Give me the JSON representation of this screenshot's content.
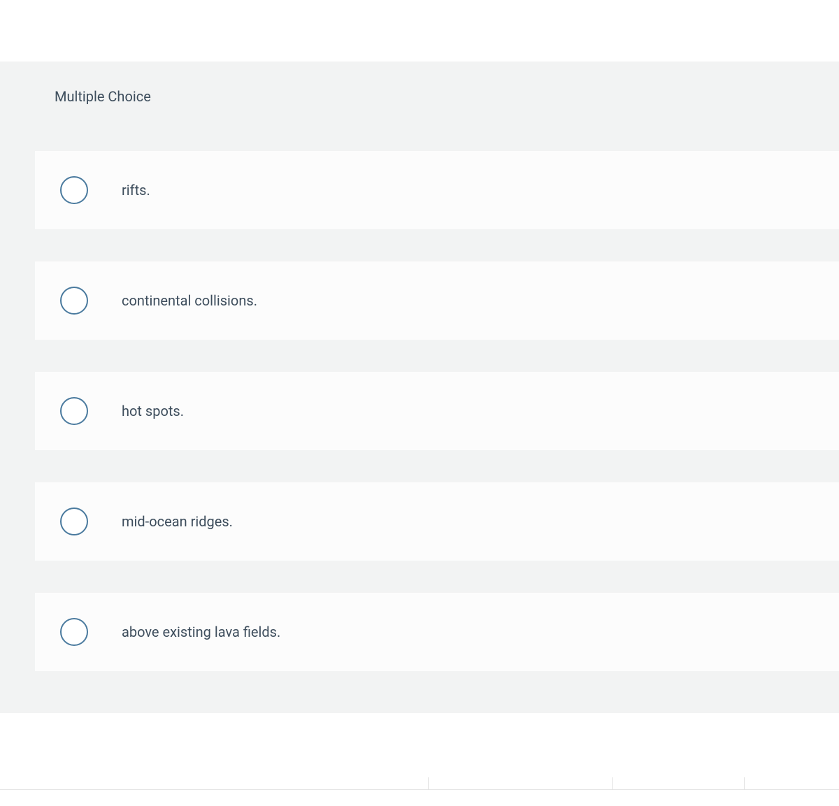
{
  "question": {
    "type_label": "Multiple Choice",
    "options": [
      {
        "label": "rifts."
      },
      {
        "label": "continental collisions."
      },
      {
        "label": "hot spots."
      },
      {
        "label": "mid-ocean ridges."
      },
      {
        "label": "above existing lava fields."
      }
    ]
  },
  "colors": {
    "page_background": "#ffffff",
    "container_background": "#f2f3f3",
    "option_background": "#fcfcfc",
    "radio_border": "#4a7a9e",
    "text_color": "#3d4d5c",
    "divider_color": "#e5e5e5"
  }
}
